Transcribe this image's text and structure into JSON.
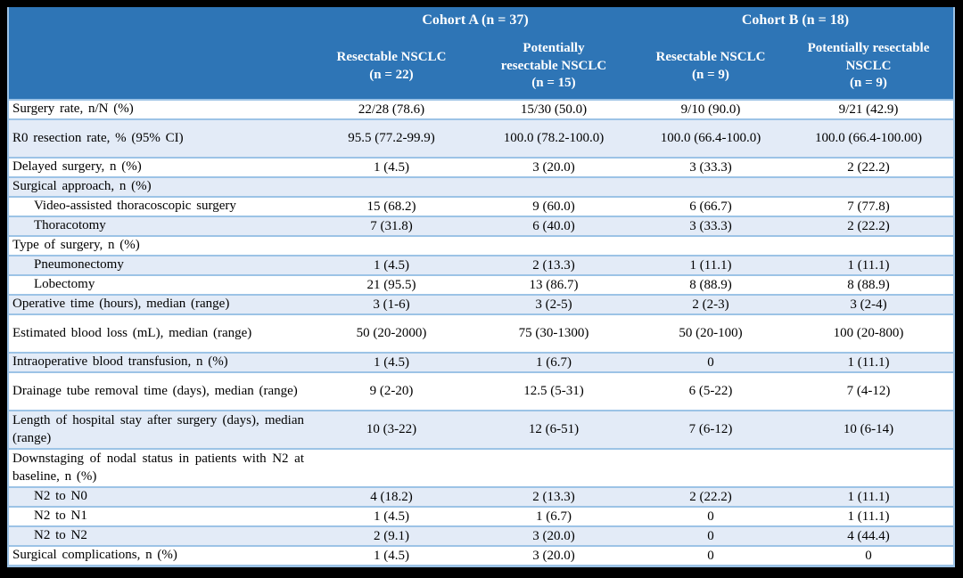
{
  "colors": {
    "header_bg": "#2E75B6",
    "header_text": "#FFFFFF",
    "stripe_bg": "#E3EBF7",
    "grid_line": "#9CC3E6",
    "frame_bg": "#000000"
  },
  "table": {
    "header": {
      "cohort_a": "Cohort A (n = 37)",
      "cohort_b": "Cohort B (n = 18)",
      "columns": [
        "Resectable NSCLC\n(n = 22)",
        "Potentially\nresectable NSCLC\n(n = 15)",
        "Resectable NSCLC\n(n = 9)",
        "Potentially resectable\nNSCLC\n(n = 9)"
      ]
    },
    "rows": [
      {
        "label": "Surgery rate, n/N (%)",
        "values": [
          "22/28 (78.6)",
          "15/30 (50.0)",
          "9/10 (90.0)",
          "9/21 (42.9)"
        ]
      },
      {
        "label": "R0 resection rate, % (95% CI)",
        "tall": true,
        "values": [
          "95.5 (77.2-99.9)",
          "100.0 (78.2-100.0)",
          "100.0 (66.4-100.0)",
          "100.0 (66.4-100.00)"
        ]
      },
      {
        "label": "Delayed surgery, n (%)",
        "values": [
          "1 (4.5)",
          "3 (20.0)",
          "3 (33.3)",
          "2 (22.2)"
        ]
      },
      {
        "label": "Surgical approach, n (%)",
        "values": [
          "",
          "",
          "",
          ""
        ]
      },
      {
        "label": "Video-assisted thoracoscopic surgery",
        "indent": true,
        "values": [
          "15 (68.2)",
          "9 (60.0)",
          "6 (66.7)",
          "7 (77.8)"
        ]
      },
      {
        "label": "Thoracotomy",
        "indent": true,
        "values": [
          "7 (31.8)",
          "6 (40.0)",
          "3 (33.3)",
          "2 (22.2)"
        ]
      },
      {
        "label": "Type of surgery, n (%)",
        "values": [
          "",
          "",
          "",
          ""
        ]
      },
      {
        "label": "Pneumonectomy",
        "indent": true,
        "values": [
          "1 (4.5)",
          "2 (13.3)",
          "1 (11.1)",
          "1 (11.1)"
        ]
      },
      {
        "label": "Lobectomy",
        "indent": true,
        "values": [
          "21 (95.5)",
          "13 (86.7)",
          "8 (88.9)",
          "8 (88.9)"
        ]
      },
      {
        "label": "Operative time (hours), median (range)",
        "values": [
          "3 (1-6)",
          "3 (2-5)",
          "2 (2-3)",
          "3 (2-4)"
        ]
      },
      {
        "label": "Estimated blood loss (mL), median (range)",
        "tall": true,
        "values": [
          "50 (20-2000)",
          "75 (30-1300)",
          "50 (20-100)",
          "100 (20-800)"
        ]
      },
      {
        "label": "Intraoperative blood transfusion, n (%)",
        "values": [
          "1 (4.5)",
          "1 (6.7)",
          "0",
          "1 (11.1)"
        ]
      },
      {
        "label": "Drainage tube removal time (days), median (range)",
        "tall": true,
        "values": [
          "9 (2-20)",
          "12.5 (5-31)",
          "6 (5-22)",
          "7 (4-12)"
        ]
      },
      {
        "label": "Length of hospital stay after surgery (days), median (range)",
        "tall": true,
        "values": [
          "10 (3-22)",
          "12 (6-51)",
          "7 (6-12)",
          "10 (6-14)"
        ]
      },
      {
        "label": "Downstaging of nodal status in patients with N2 at baseline, n (%)",
        "tall": true,
        "values": [
          "",
          "",
          "",
          ""
        ]
      },
      {
        "label": "N2 to N0",
        "indent": true,
        "values": [
          "4 (18.2)",
          "2 (13.3)",
          "2 (22.2)",
          "1 (11.1)"
        ]
      },
      {
        "label": "N2 to N1",
        "indent": true,
        "values": [
          "1 (4.5)",
          "1 (6.7)",
          "0",
          "1 (11.1)"
        ]
      },
      {
        "label": "N2 to N2",
        "indent": true,
        "values": [
          "2 (9.1)",
          "3 (20.0)",
          "0",
          "4 (44.4)"
        ]
      },
      {
        "label": "Surgical complications, n (%)",
        "values": [
          "1 (4.5)",
          "3 (20.0)",
          "0",
          "0"
        ]
      }
    ]
  }
}
